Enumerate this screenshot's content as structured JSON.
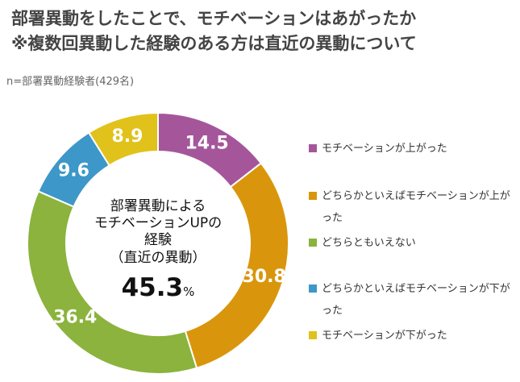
{
  "header": {
    "title_line1": "部署異動をしたことで、モチベーションはあがったか",
    "title_line2": "※複数回異動した経験のある方は直近の異動について",
    "sample": "n=部署異動経験者(429名)"
  },
  "center": {
    "label_line1": "部署異動による",
    "label_line2": "モチベーションUPの",
    "label_line3": "経験",
    "label_line4": "（直近の異動）",
    "value": "45.3",
    "unit": "%"
  },
  "legend": {
    "items": [
      {
        "label": "モチベーションが上がった",
        "color": "#a5569b"
      },
      {
        "label": "どちらかといえばモチベーションが上がった",
        "color": "#d9960c"
      },
      {
        "label": "どちらともいえない",
        "color": "#8bb33d"
      },
      {
        "label": "どちらかといえばモチベーションが下がった",
        "color": "#3d97c8"
      },
      {
        "label": "モチベーションが下がった",
        "color": "#e0c21a"
      }
    ]
  },
  "chart_data": {
    "type": "pie",
    "variant": "donut",
    "title": "部署異動をしたことで、モチベーションはあがったか",
    "categories": [
      "モチベーションが上がった",
      "どちらかといえばモチベーションが上がった",
      "どちらともいえない",
      "どちらかといえばモチベーションが下がった",
      "モチベーションが下がった"
    ],
    "values": [
      14.5,
      30.8,
      36.4,
      9.6,
      8.9
    ],
    "value_labels": [
      "14.5",
      "30.8",
      "36.4",
      "9.6",
      "8.9"
    ],
    "colors": [
      "#a5569b",
      "#d9960c",
      "#8bb33d",
      "#3d97c8",
      "#e0c21a"
    ],
    "legend_position": "right"
  }
}
